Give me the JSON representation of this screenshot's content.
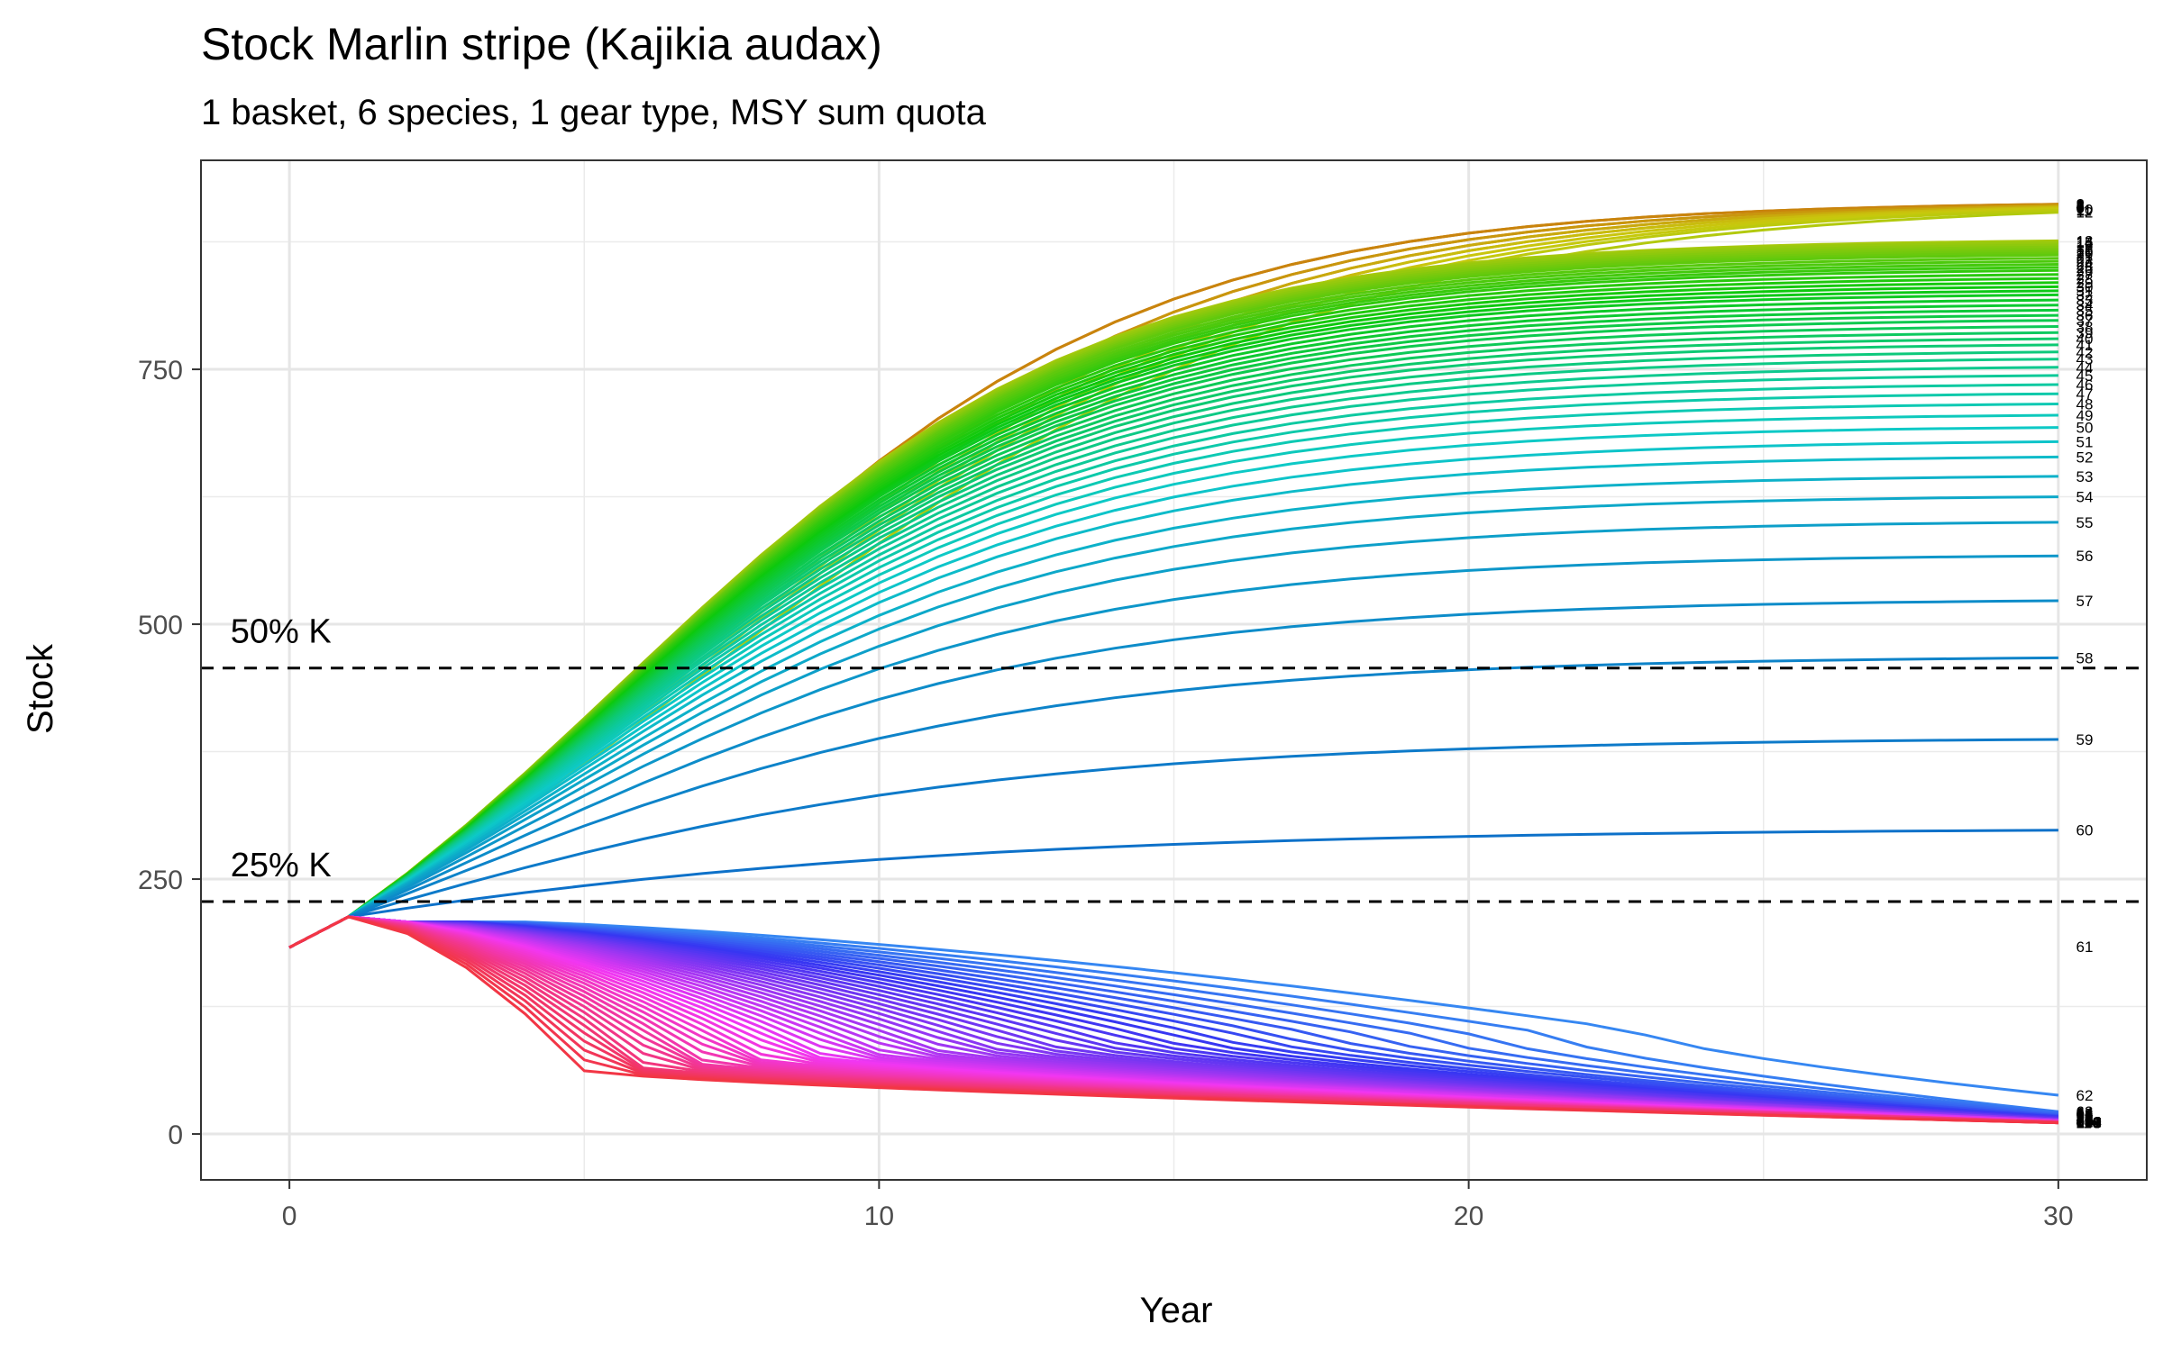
{
  "chart_data": {
    "type": "line",
    "title": "Stock Marlin stripe (Kajikia audax)",
    "subtitle": "1 basket, 6 species, 1 gear type, MSY sum quota",
    "xlabel": "Year",
    "ylabel": "Stock",
    "xlim": [
      -1.5,
      31.5
    ],
    "ylim": [
      -45,
      955
    ],
    "x_ticks": [
      "0",
      "10",
      "20",
      "30"
    ],
    "y_ticks": [
      "0",
      "250",
      "500",
      "750"
    ],
    "grid": true,
    "legend": "none",
    "reference_lines": [
      {
        "label": "50% K",
        "y": 457
      },
      {
        "label": "25% K",
        "y": 228
      }
    ],
    "initial_stock": 183,
    "year1_stock": 213,
    "scenario_count": 110,
    "series_labels": [
      "1",
      "2",
      "3",
      "4",
      "5",
      "6",
      "7",
      "8",
      "9",
      "10",
      "11",
      "12",
      "13",
      "14",
      "15",
      "16",
      "17",
      "18",
      "19",
      "20",
      "21",
      "22",
      "23",
      "24",
      "25",
      "26",
      "27",
      "28",
      "29",
      "30",
      "31",
      "32",
      "33",
      "34",
      "35",
      "36",
      "37",
      "38",
      "39",
      "40",
      "41",
      "42",
      "43",
      "44",
      "45",
      "46",
      "47",
      "48",
      "49",
      "50",
      "51",
      "52",
      "53",
      "54",
      "55",
      "56",
      "57",
      "58",
      "59",
      "60",
      "61",
      "62",
      "63",
      "64",
      "65",
      "66",
      "67",
      "68",
      "69",
      "70",
      "71",
      "72",
      "73",
      "74",
      "75",
      "76",
      "77",
      "78",
      "79",
      "80",
      "81",
      "82",
      "83",
      "84",
      "85",
      "86",
      "87",
      "88",
      "89",
      "90",
      "91",
      "92",
      "93",
      "94",
      "95",
      "96",
      "97",
      "98",
      "99",
      "100",
      "101",
      "102",
      "103",
      "104",
      "105",
      "106",
      "107",
      "108",
      "109",
      "110"
    ],
    "final_stock": [
      912,
      912,
      911,
      911,
      910,
      910,
      909,
      909,
      908,
      907,
      906,
      904,
      876,
      875,
      874,
      872,
      870,
      868,
      866,
      864,
      862,
      859,
      856,
      853,
      850,
      847,
      843,
      839,
      835,
      831,
      827,
      823,
      818,
      813,
      808,
      803,
      798,
      792,
      786,
      780,
      774,
      767,
      760,
      752,
      744,
      735,
      726,
      716,
      705,
      693,
      679,
      664,
      645,
      625,
      600,
      567,
      523,
      467,
      387,
      298,
      184,
      38,
      22,
      21,
      20,
      19,
      18,
      18,
      17,
      17,
      16,
      16,
      16,
      15,
      15,
      15,
      14,
      14,
      14,
      14,
      14,
      13,
      13,
      13,
      13,
      13,
      13,
      13,
      12,
      12,
      12,
      12,
      12,
      12,
      12,
      12,
      12,
      12,
      12,
      12,
      12,
      12,
      12,
      12,
      11,
      11,
      11,
      11,
      11,
      11
    ]
  }
}
